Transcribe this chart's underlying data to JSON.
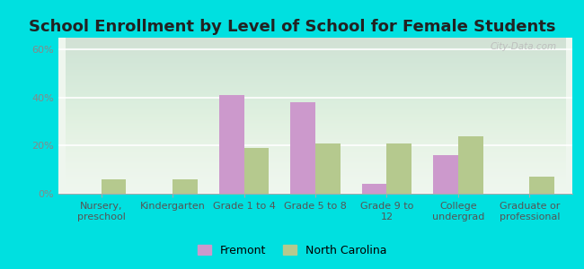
{
  "title": "School Enrollment by Level of School for Female Students",
  "categories": [
    "Nursery,\npreschool",
    "Kindergarten",
    "Grade 1 to 4",
    "Grade 5 to 8",
    "Grade 9 to\n12",
    "College\nundergrad",
    "Graduate or\nprofessional"
  ],
  "fremont": [
    0,
    0,
    41,
    38,
    4,
    16,
    0
  ],
  "north_carolina": [
    6,
    6,
    19,
    21,
    21,
    24,
    7
  ],
  "fremont_color": "#cc99cc",
  "north_carolina_color": "#b5c98e",
  "background_color": "#00e0e0",
  "plot_bg": "#eef6ee",
  "ylim": [
    0,
    65
  ],
  "yticks": [
    0,
    20,
    40,
    60
  ],
  "ytick_labels": [
    "0%",
    "20%",
    "40%",
    "60%"
  ],
  "bar_width": 0.35,
  "title_fontsize": 13,
  "tick_fontsize": 8,
  "legend_fontsize": 9,
  "watermark": "City-Data.com"
}
